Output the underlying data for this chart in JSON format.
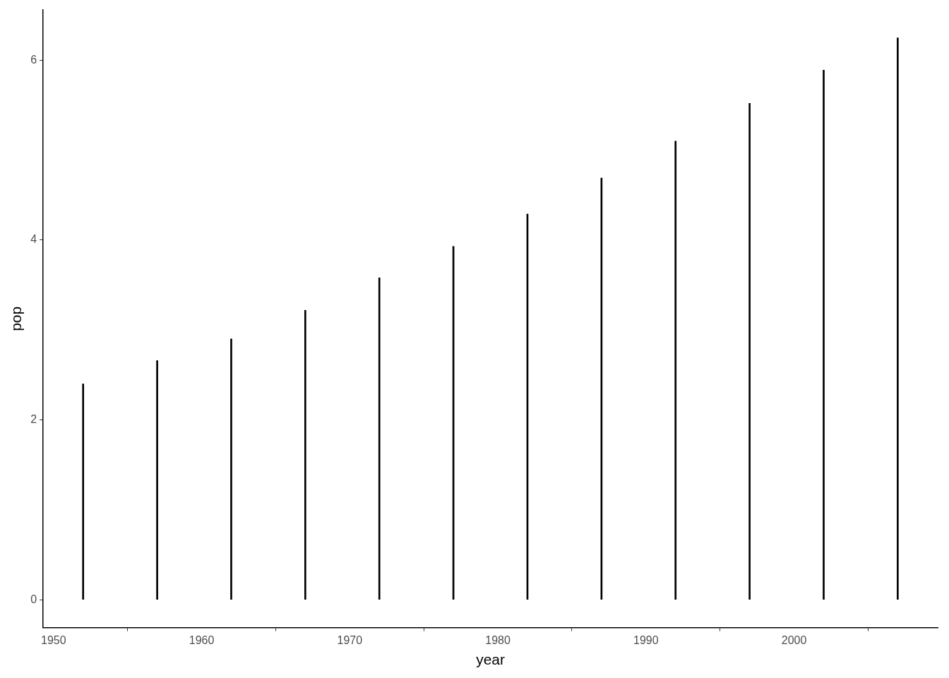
{
  "chart_data": {
    "type": "bar",
    "xlabel": "year",
    "ylabel": "pop",
    "x": [
      1952,
      1957,
      1962,
      1967,
      1972,
      1977,
      1982,
      1987,
      1992,
      1997,
      2002,
      2007
    ],
    "values": [
      2.4,
      2.66,
      2.9,
      3.22,
      3.58,
      3.93,
      4.29,
      4.69,
      5.1,
      5.52,
      5.89,
      6.25
    ],
    "color": "#000000",
    "xlim": [
      1949.3,
      2009.7
    ],
    "xticks": [
      1950,
      1960,
      1970,
      1980,
      1990,
      2000
    ],
    "ylim": [
      -0.31,
      6.56
    ],
    "yticks": [
      0,
      2,
      4,
      6
    ]
  }
}
